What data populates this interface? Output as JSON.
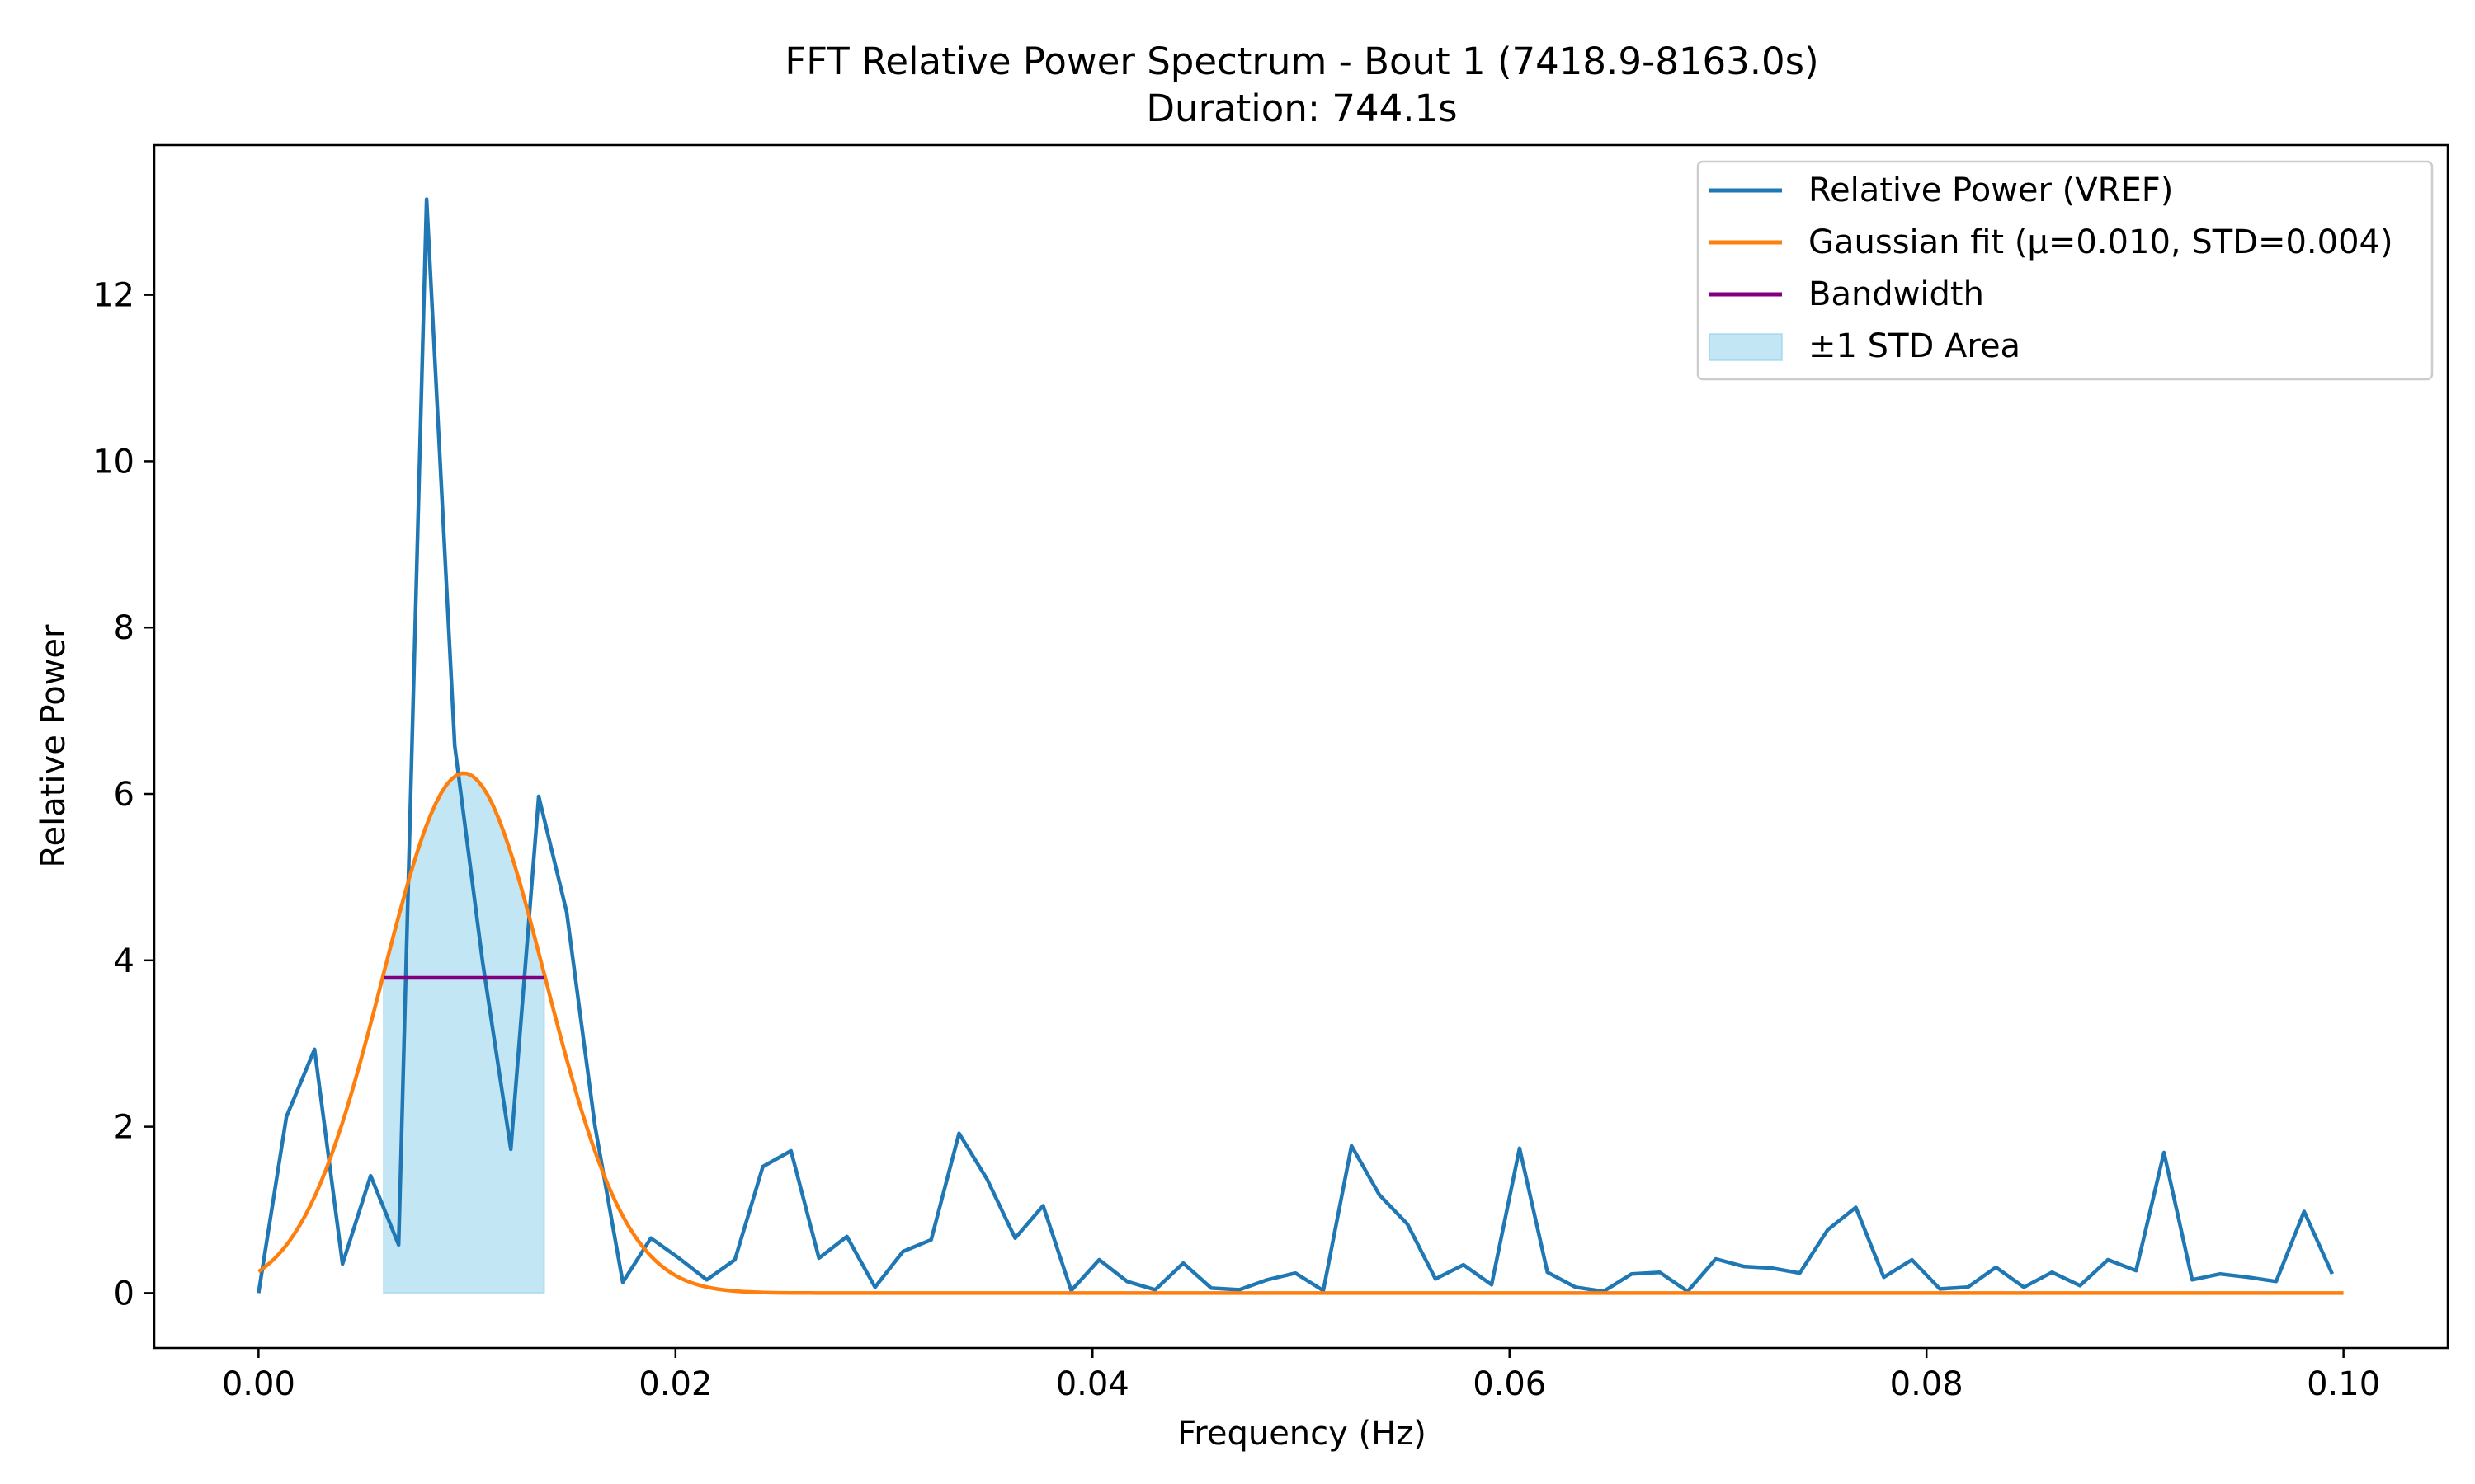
{
  "chart_data": {
    "type": "line",
    "title": "FFT Relative Power Spectrum - Bout 1 (7418.9-8163.0s)",
    "subtitle": "Duration: 744.1s",
    "xlabel": "Frequency (Hz)",
    "ylabel": "Relative Power",
    "xlim": [
      -0.005,
      0.105
    ],
    "ylim": [
      -0.66,
      13.8
    ],
    "x_ticks": [
      0.0,
      0.02,
      0.04,
      0.06,
      0.08,
      0.1
    ],
    "x_tick_labels": [
      "0.00",
      "0.02",
      "0.04",
      "0.06",
      "0.08",
      "0.10"
    ],
    "y_ticks": [
      0,
      2,
      4,
      6,
      8,
      10,
      12
    ],
    "y_tick_labels": [
      "0",
      "2",
      "4",
      "6",
      "8",
      "10",
      "12"
    ],
    "grid": false,
    "legend_position": "top-right",
    "series": [
      {
        "name": "Relative Power (VREF)",
        "color": "#1f77b4",
        "kind": "line",
        "x": [
          0.0,
          0.00134,
          0.00269,
          0.00403,
          0.00538,
          0.00672,
          0.00806,
          0.00941,
          0.01075,
          0.0121,
          0.01344,
          0.01478,
          0.01613,
          0.01747,
          0.01882,
          0.02016,
          0.0215,
          0.02285,
          0.02419,
          0.02554,
          0.02688,
          0.02822,
          0.02957,
          0.03091,
          0.03226,
          0.0336,
          0.03494,
          0.03629,
          0.03763,
          0.03898,
          0.04032,
          0.04166,
          0.04301,
          0.04435,
          0.0457,
          0.04704,
          0.04838,
          0.04973,
          0.05107,
          0.05242,
          0.05376,
          0.0551,
          0.05645,
          0.05779,
          0.05914,
          0.06048,
          0.06182,
          0.06317,
          0.06451,
          0.06586,
          0.0672,
          0.06854,
          0.06989,
          0.07123,
          0.07258,
          0.07392,
          0.07526,
          0.07661,
          0.07795,
          0.0793,
          0.08064,
          0.08198,
          0.08333,
          0.08467,
          0.08602,
          0.08736,
          0.0887,
          0.09005,
          0.09139,
          0.09274,
          0.09408,
          0.09542,
          0.09677,
          0.09811,
          0.09946
        ],
        "y": [
          0.0,
          2.12,
          2.93,
          0.35,
          1.41,
          0.58,
          13.15,
          6.58,
          3.98,
          1.73,
          5.97,
          4.58,
          2.02,
          0.13,
          0.66,
          0.42,
          0.16,
          0.4,
          1.52,
          1.71,
          0.42,
          0.68,
          0.07,
          0.5,
          0.64,
          1.92,
          1.37,
          0.66,
          1.05,
          0.03,
          0.4,
          0.14,
          0.04,
          0.36,
          0.06,
          0.04,
          0.16,
          0.24,
          0.03,
          1.77,
          1.18,
          0.83,
          0.17,
          0.34,
          0.1,
          1.74,
          0.25,
          0.07,
          0.02,
          0.23,
          0.25,
          0.02,
          0.41,
          0.32,
          0.3,
          0.24,
          0.76,
          1.03,
          0.19,
          0.4,
          0.05,
          0.07,
          0.31,
          0.07,
          0.25,
          0.09,
          0.4,
          0.27,
          1.69,
          0.16,
          0.23,
          0.19,
          0.14,
          0.98,
          0.23
        ]
      },
      {
        "name": "Gaussian fit (μ=0.010, STD=0.004)",
        "color": "#ff7f0e",
        "kind": "gaussian",
        "amplitude": 6.25,
        "mu": 0.00985,
        "sigma": 0.0039,
        "x_range": [
          0.0,
          0.1
        ]
      },
      {
        "name": "Bandwidth",
        "color": "#800080",
        "kind": "hline",
        "x": [
          0.006,
          0.0137
        ],
        "y": 3.79
      },
      {
        "name": "±1 STD Area",
        "color": "#87ceeb",
        "kind": "band",
        "x": [
          0.006,
          0.0137
        ]
      }
    ]
  }
}
